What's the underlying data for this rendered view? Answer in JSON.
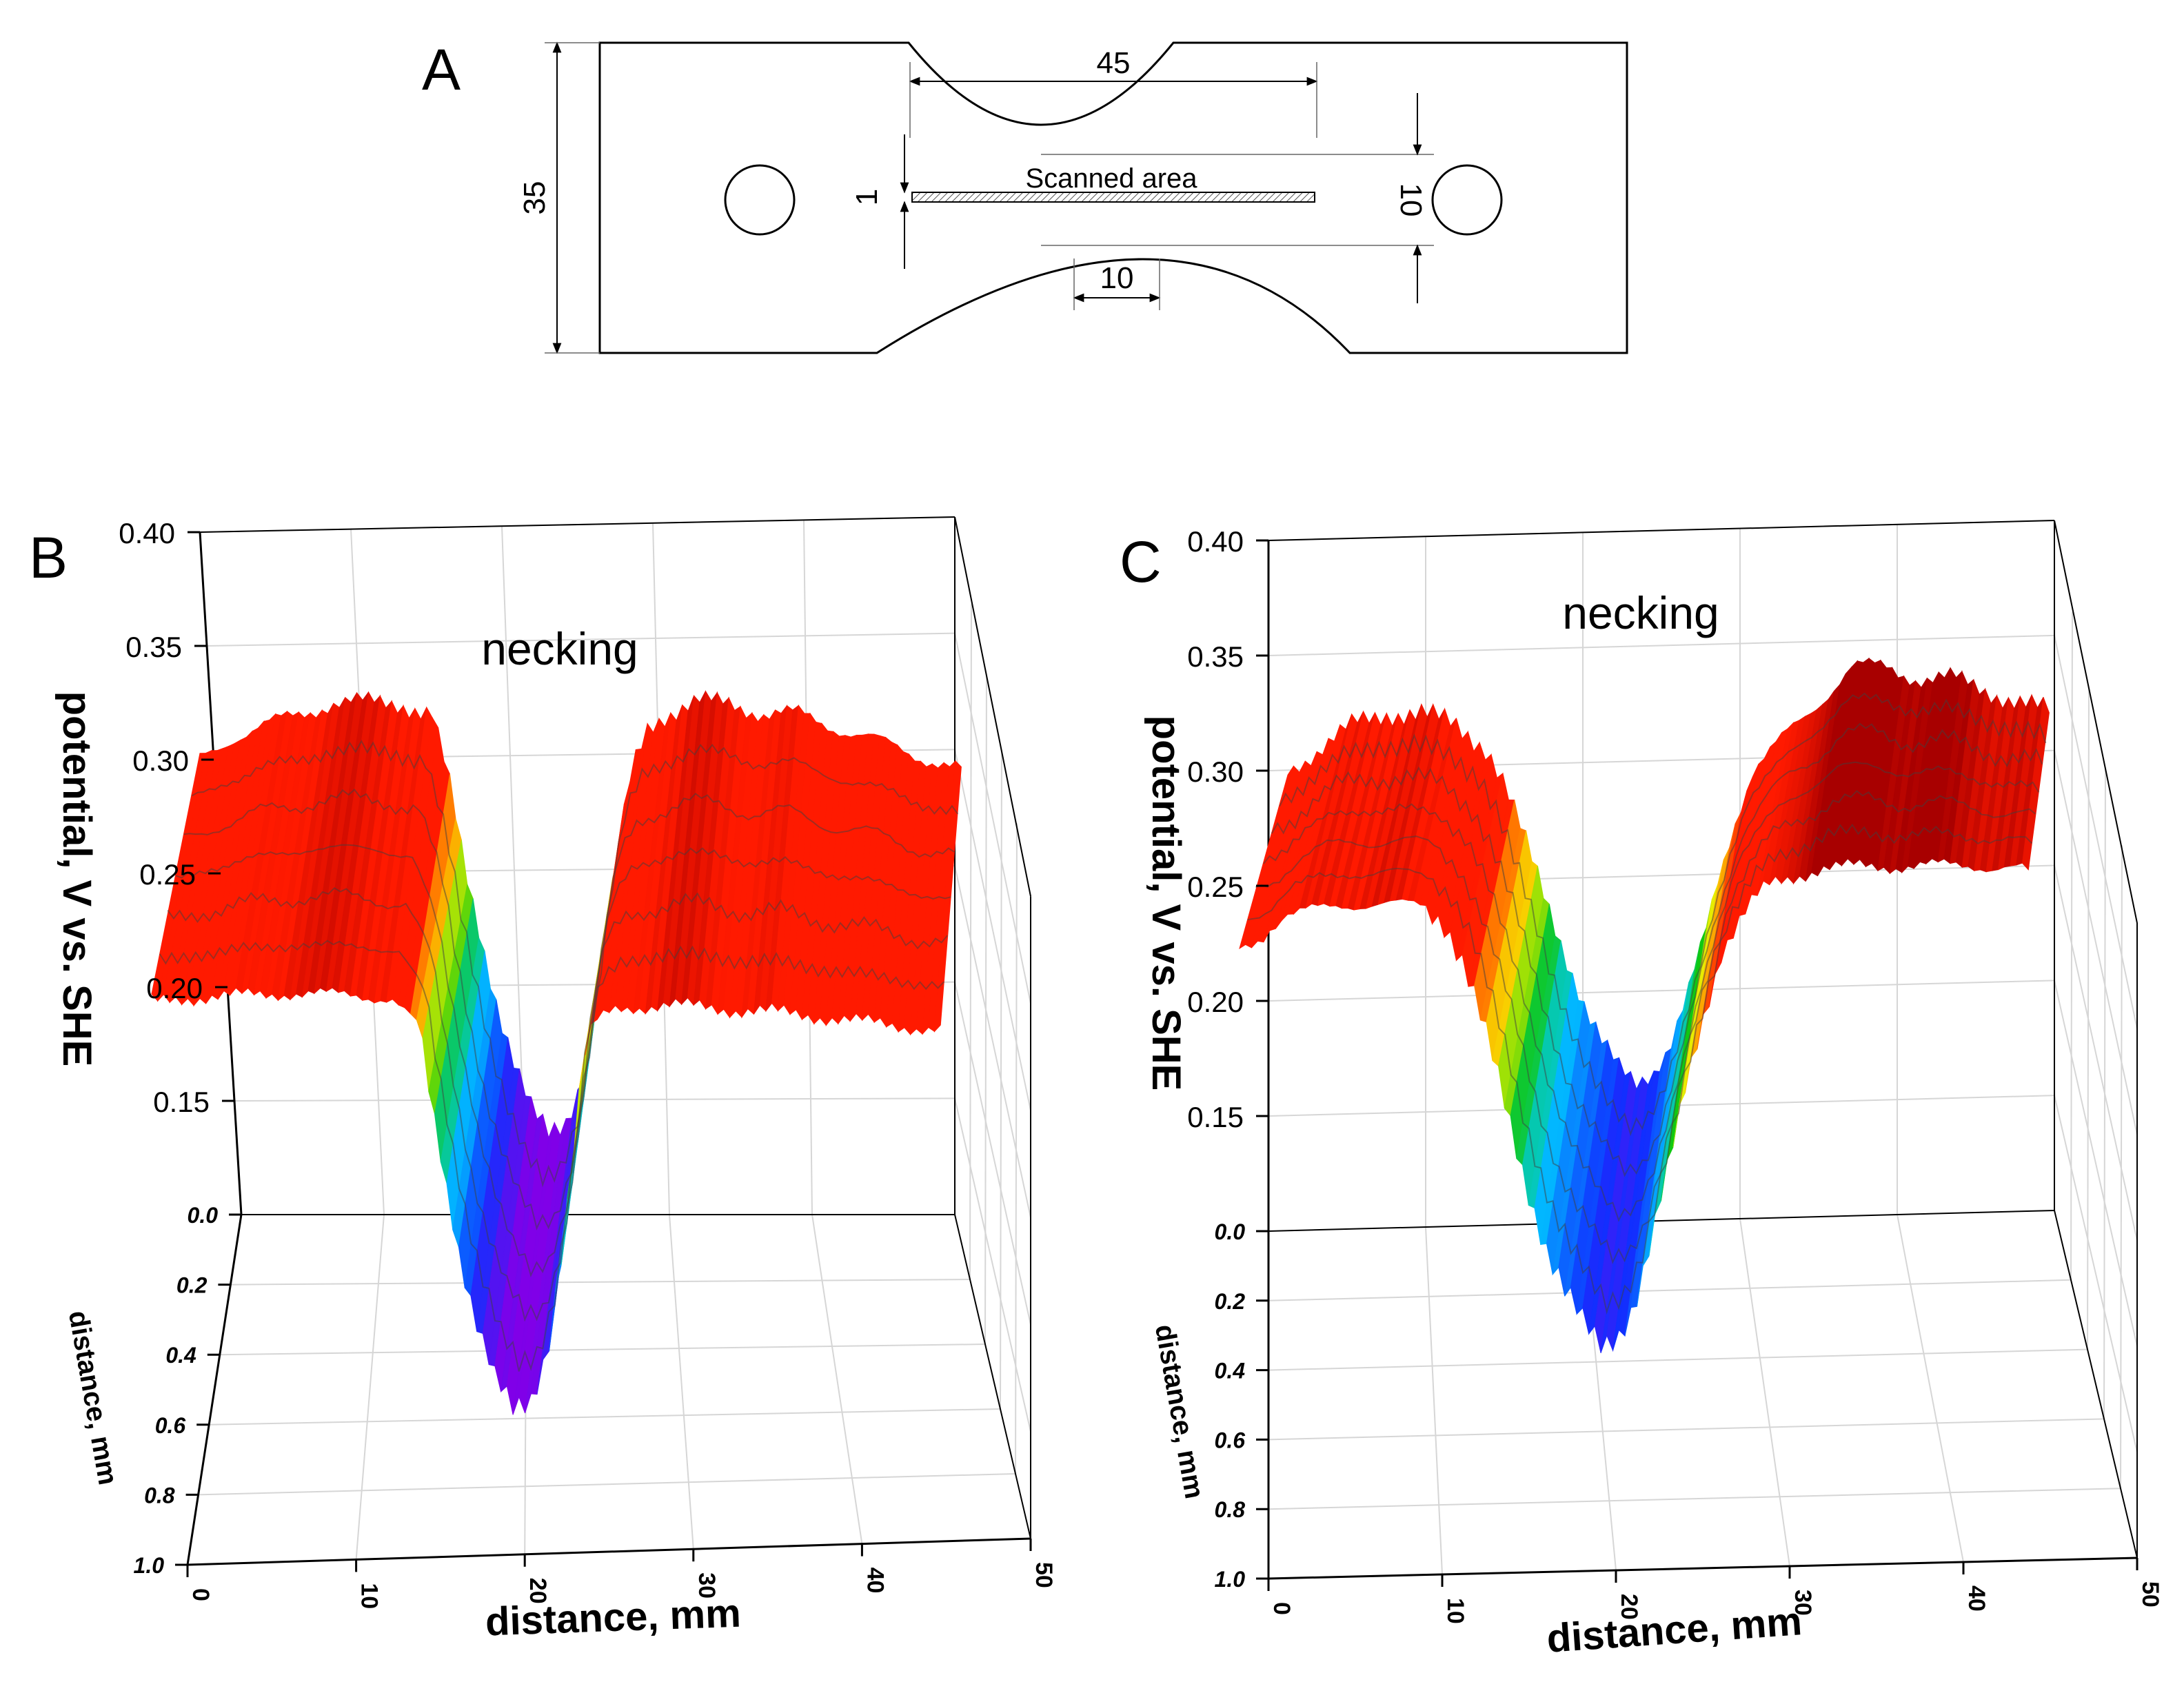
{
  "panels": {
    "a": {
      "label": "A",
      "dimensions": {
        "top_length": "45",
        "height": "35",
        "scan_width": "1",
        "gauge_width": "10",
        "detail_length": "10"
      },
      "scan_label": "Scanned area"
    },
    "b": {
      "label": "B"
    },
    "c": {
      "label": "C"
    }
  },
  "colors": {
    "red": "#ff1a00",
    "darkred": "#a80000",
    "orange": "#ff8c00",
    "yellow": "#f5f000",
    "green": "#10c810",
    "cyan": "#00c8ff",
    "blue": "#1030ff",
    "violet": "#8000e8",
    "contour": "#404040",
    "grid": "#d6d6d6"
  },
  "chart_data": [
    {
      "id": "b",
      "type": "surface3d",
      "annotation": "necking",
      "zlabel": "potential, V vs. SHE",
      "xlabel": "distance, mm",
      "ylabel": "distance, mm",
      "xlim": [
        0,
        50
      ],
      "ylim": [
        0.0,
        1.0
      ],
      "zlim": [
        0.1,
        0.4
      ],
      "xticks": [
        "0",
        "10",
        "20",
        "30",
        "40",
        "50"
      ],
      "yticks": [
        "0.0",
        "0.2",
        "0.4",
        "0.6",
        "0.8",
        "1.0"
      ],
      "zticks": [
        "0.15",
        "0.20",
        "0.25",
        "0.30",
        "0.35",
        "0.40"
      ],
      "profile": {
        "x": [
          0,
          2,
          4,
          6,
          8,
          10,
          12,
          14,
          15,
          16,
          17,
          18,
          19,
          20,
          21,
          22,
          23,
          24,
          25,
          26,
          27,
          28,
          30,
          32,
          34,
          36,
          38,
          40,
          42,
          44,
          46
        ],
        "potential": [
          0.3,
          0.31,
          0.315,
          0.32,
          0.325,
          0.325,
          0.325,
          0.32,
          0.29,
          0.25,
          0.22,
          0.19,
          0.165,
          0.145,
          0.135,
          0.14,
          0.16,
          0.2,
          0.25,
          0.295,
          0.315,
          0.32,
          0.325,
          0.325,
          0.32,
          0.32,
          0.315,
          0.31,
          0.305,
          0.3,
          0.295
        ]
      }
    },
    {
      "id": "c",
      "type": "surface3d",
      "annotation": "necking",
      "zlabel": "potential, V vs. SHE",
      "xlabel": "distance, mm",
      "ylabel": "distance, mm",
      "xlim": [
        0,
        50
      ],
      "ylim": [
        0.0,
        1.0
      ],
      "zlim": [
        0.1,
        0.4
      ],
      "xticks": [
        "0",
        "10",
        "20",
        "30",
        "40",
        "50"
      ],
      "yticks": [
        "0.0",
        "0.2",
        "0.4",
        "0.6",
        "0.8",
        "1.0"
      ],
      "zticks": [
        "0.15",
        "0.20",
        "0.25",
        "0.30",
        "0.35",
        "0.40"
      ],
      "profile": {
        "x": [
          0,
          2,
          4,
          6,
          8,
          10,
          12,
          13,
          14,
          15,
          16,
          17,
          18,
          19,
          20,
          21,
          22,
          23,
          24,
          25,
          26,
          27,
          28,
          30,
          32,
          34,
          36,
          38,
          40,
          42,
          44,
          46
        ],
        "potential": [
          0.3,
          0.31,
          0.32,
          0.325,
          0.325,
          0.32,
          0.31,
          0.295,
          0.275,
          0.255,
          0.235,
          0.215,
          0.195,
          0.18,
          0.17,
          0.165,
          0.17,
          0.18,
          0.2,
          0.225,
          0.255,
          0.28,
          0.3,
          0.315,
          0.33,
          0.345,
          0.345,
          0.34,
          0.34,
          0.335,
          0.33,
          0.325
        ]
      }
    }
  ]
}
